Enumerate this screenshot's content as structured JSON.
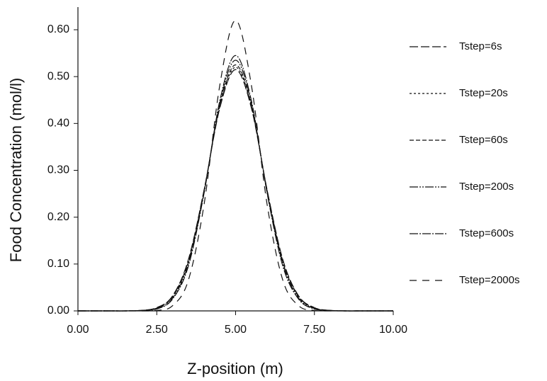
{
  "chart_data": {
    "type": "line",
    "x_label": "Z-position (m)",
    "y_label": "Food Concentration (mol/l)",
    "x": [
      0,
      0.5,
      1,
      1.5,
      2,
      2.5,
      3,
      3.5,
      4,
      4.5,
      5,
      5.5,
      6,
      6.5,
      7,
      7.5,
      8,
      8.5,
      9,
      9.5,
      10
    ],
    "series": [
      {
        "name": "Tstep=6s",
        "color": "#111111",
        "dash": "12,4",
        "values": [
          0,
          0,
          0,
          0,
          0.001,
          0.007,
          0.032,
          0.109,
          0.258,
          0.433,
          0.515,
          0.433,
          0.258,
          0.109,
          0.032,
          0.007,
          0.001,
          0,
          0,
          0,
          0
        ]
      },
      {
        "name": "Tstep=20s",
        "color": "#111111",
        "dash": "3,3",
        "values": [
          0,
          0,
          0,
          0,
          0.001,
          0.006,
          0.031,
          0.106,
          0.257,
          0.436,
          0.52,
          0.436,
          0.257,
          0.106,
          0.031,
          0.006,
          0.001,
          0,
          0,
          0,
          0
        ]
      },
      {
        "name": "Tstep=60s",
        "color": "#111111",
        "dash": "6,3",
        "values": [
          0,
          0,
          0,
          0,
          0.001,
          0.006,
          0.03,
          0.104,
          0.256,
          0.439,
          0.525,
          0.439,
          0.256,
          0.104,
          0.03,
          0.006,
          0.001,
          0,
          0,
          0,
          0
        ]
      },
      {
        "name": "Tstep=200s",
        "color": "#111111",
        "dash": "12,2,2,2,2,2",
        "values": [
          0,
          0,
          0,
          0,
          0.001,
          0.005,
          0.027,
          0.1,
          0.253,
          0.444,
          0.535,
          0.444,
          0.253,
          0.1,
          0.027,
          0.005,
          0.001,
          0,
          0,
          0,
          0
        ]
      },
      {
        "name": "Tstep=600s",
        "color": "#111111",
        "dash": "12,2,2,2",
        "values": [
          0,
          0,
          0,
          0,
          0.001,
          0.004,
          0.025,
          0.095,
          0.251,
          0.449,
          0.545,
          0.449,
          0.251,
          0.095,
          0.025,
          0.004,
          0.001,
          0,
          0,
          0,
          0
        ]
      },
      {
        "name": "Tstep=2000s",
        "color": "#111111",
        "dash": "10,8",
        "values": [
          0,
          0,
          0,
          0,
          0,
          0.001,
          0.011,
          0.065,
          0.227,
          0.482,
          0.62,
          0.482,
          0.227,
          0.065,
          0.011,
          0.001,
          0,
          0,
          0,
          0,
          0
        ]
      }
    ],
    "xlim": [
      0,
      10
    ],
    "ylim": [
      0,
      0.6
    ],
    "xticks": [
      {
        "value": 0,
        "label": "0.00"
      },
      {
        "value": 2.5,
        "label": "2.50"
      },
      {
        "value": 5,
        "label": "5.00"
      },
      {
        "value": 7.5,
        "label": "7.50"
      },
      {
        "value": 10,
        "label": "10.00"
      }
    ],
    "yticks": [
      {
        "value": 0,
        "label": "0.00"
      },
      {
        "value": 0.1,
        "label": "0.10"
      },
      {
        "value": 0.2,
        "label": "0.20"
      },
      {
        "value": 0.3,
        "label": "0.30"
      },
      {
        "value": 0.4,
        "label": "0.40"
      },
      {
        "value": 0.5,
        "label": "0.50"
      },
      {
        "value": 0.6,
        "label": "0.60"
      }
    ],
    "grid": false,
    "legend": "right"
  }
}
